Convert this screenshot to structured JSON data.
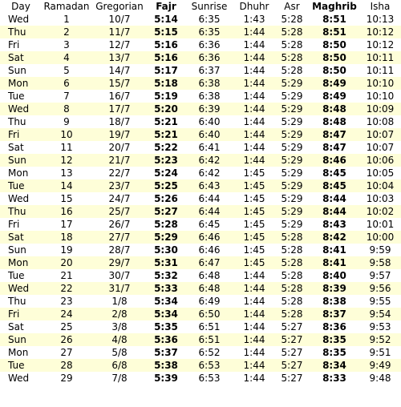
{
  "headers": [
    "Day",
    "Ramadan",
    "Gregorian",
    "Fajr",
    "Sunrise",
    "Dhuhr",
    "Asr",
    "Maghrib",
    "Isha"
  ],
  "bold_columns": [
    3,
    7
  ],
  "colors": {
    "row_even": "#ffffff",
    "row_odd": "#fefed8",
    "text": "#000000"
  },
  "rows": [
    [
      "Wed",
      "1",
      "10/7",
      "5:14",
      "6:35",
      "1:43",
      "5:28",
      "8:51",
      "10:13"
    ],
    [
      "Thu",
      "2",
      "11/7",
      "5:15",
      "6:35",
      "1:44",
      "5:28",
      "8:51",
      "10:12"
    ],
    [
      "Fri",
      "3",
      "12/7",
      "5:16",
      "6:36",
      "1:44",
      "5:28",
      "8:50",
      "10:12"
    ],
    [
      "Sat",
      "4",
      "13/7",
      "5:16",
      "6:36",
      "1:44",
      "5:28",
      "8:50",
      "10:11"
    ],
    [
      "Sun",
      "5",
      "14/7",
      "5:17",
      "6:37",
      "1:44",
      "5:28",
      "8:50",
      "10:11"
    ],
    [
      "Mon",
      "6",
      "15/7",
      "5:18",
      "6:38",
      "1:44",
      "5:29",
      "8:49",
      "10:10"
    ],
    [
      "Tue",
      "7",
      "16/7",
      "5:19",
      "6:38",
      "1:44",
      "5:29",
      "8:49",
      "10:10"
    ],
    [
      "Wed",
      "8",
      "17/7",
      "5:20",
      "6:39",
      "1:44",
      "5:29",
      "8:48",
      "10:09"
    ],
    [
      "Thu",
      "9",
      "18/7",
      "5:21",
      "6:40",
      "1:44",
      "5:29",
      "8:48",
      "10:08"
    ],
    [
      "Fri",
      "10",
      "19/7",
      "5:21",
      "6:40",
      "1:44",
      "5:29",
      "8:47",
      "10:07"
    ],
    [
      "Sat",
      "11",
      "20/7",
      "5:22",
      "6:41",
      "1:44",
      "5:29",
      "8:47",
      "10:07"
    ],
    [
      "Sun",
      "12",
      "21/7",
      "5:23",
      "6:42",
      "1:44",
      "5:29",
      "8:46",
      "10:06"
    ],
    [
      "Mon",
      "13",
      "22/7",
      "5:24",
      "6:42",
      "1:45",
      "5:29",
      "8:45",
      "10:05"
    ],
    [
      "Tue",
      "14",
      "23/7",
      "5:25",
      "6:43",
      "1:45",
      "5:29",
      "8:45",
      "10:04"
    ],
    [
      "Wed",
      "15",
      "24/7",
      "5:26",
      "6:44",
      "1:45",
      "5:29",
      "8:44",
      "10:03"
    ],
    [
      "Thu",
      "16",
      "25/7",
      "5:27",
      "6:44",
      "1:45",
      "5:29",
      "8:44",
      "10:02"
    ],
    [
      "Fri",
      "17",
      "26/7",
      "5:28",
      "6:45",
      "1:45",
      "5:29",
      "8:43",
      "10:01"
    ],
    [
      "Sat",
      "18",
      "27/7",
      "5:29",
      "6:46",
      "1:45",
      "5:28",
      "8:42",
      "10:00"
    ],
    [
      "Sun",
      "19",
      "28/7",
      "5:30",
      "6:46",
      "1:45",
      "5:28",
      "8:41",
      "9:59"
    ],
    [
      "Mon",
      "20",
      "29/7",
      "5:31",
      "6:47",
      "1:45",
      "5:28",
      "8:41",
      "9:58"
    ],
    [
      "Tue",
      "21",
      "30/7",
      "5:32",
      "6:48",
      "1:44",
      "5:28",
      "8:40",
      "9:57"
    ],
    [
      "Wed",
      "22",
      "31/7",
      "5:33",
      "6:48",
      "1:44",
      "5:28",
      "8:39",
      "9:56"
    ],
    [
      "Thu",
      "23",
      "1/8",
      "5:34",
      "6:49",
      "1:44",
      "5:28",
      "8:38",
      "9:55"
    ],
    [
      "Fri",
      "24",
      "2/8",
      "5:34",
      "6:50",
      "1:44",
      "5:28",
      "8:37",
      "9:54"
    ],
    [
      "Sat",
      "25",
      "3/8",
      "5:35",
      "6:51",
      "1:44",
      "5:27",
      "8:36",
      "9:53"
    ],
    [
      "Sun",
      "26",
      "4/8",
      "5:36",
      "6:51",
      "1:44",
      "5:27",
      "8:35",
      "9:52"
    ],
    [
      "Mon",
      "27",
      "5/8",
      "5:37",
      "6:52",
      "1:44",
      "5:27",
      "8:35",
      "9:51"
    ],
    [
      "Tue",
      "28",
      "6/8",
      "5:38",
      "6:53",
      "1:44",
      "5:27",
      "8:34",
      "9:49"
    ],
    [
      "Wed",
      "29",
      "7/8",
      "5:39",
      "6:53",
      "1:44",
      "5:27",
      "8:33",
      "9:48"
    ]
  ]
}
